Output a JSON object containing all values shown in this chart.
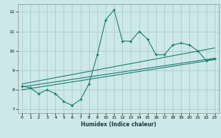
{
  "xlabel": "Humidex (Indice chaleur)",
  "ylabel": "",
  "xlim": [
    -0.5,
    23.5
  ],
  "ylim": [
    6.8,
    12.4
  ],
  "xticks": [
    0,
    1,
    2,
    3,
    4,
    5,
    6,
    7,
    8,
    9,
    10,
    11,
    12,
    13,
    14,
    15,
    16,
    17,
    18,
    19,
    20,
    21,
    22,
    23
  ],
  "yticks": [
    7,
    8,
    9,
    10,
    11,
    12
  ],
  "bg_color": "#cce8e8",
  "grid_color": "#aacccc",
  "line_color": "#1a7870",
  "x_data": [
    0,
    1,
    2,
    3,
    4,
    5,
    6,
    7,
    8,
    9,
    10,
    11,
    12,
    13,
    14,
    15,
    16,
    17,
    18,
    19,
    20,
    21,
    22,
    23
  ],
  "y_jagged": [
    8.2,
    8.1,
    7.8,
    8.0,
    7.8,
    7.4,
    7.2,
    7.5,
    8.3,
    9.8,
    11.6,
    12.1,
    10.5,
    10.5,
    11.0,
    10.6,
    9.8,
    9.8,
    10.3,
    10.4,
    10.3,
    10.0,
    9.5,
    9.6
  ],
  "trend1_start_y": 8.15,
  "trend1_end_y": 9.62,
  "trend2_start_y": 8.3,
  "trend2_end_y": 10.15,
  "trend3_start_y": 8.0,
  "trend3_end_y": 9.55
}
